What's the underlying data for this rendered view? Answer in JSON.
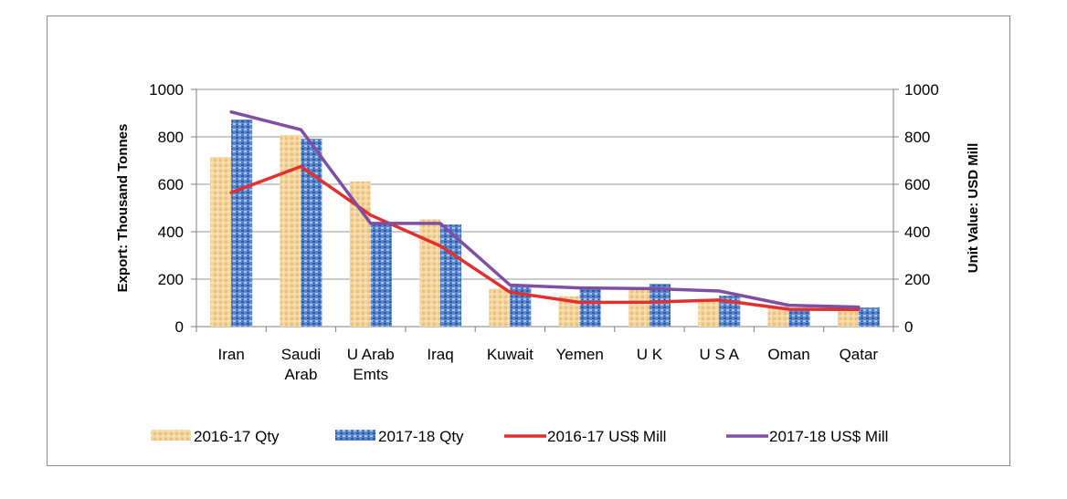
{
  "chart_data": {
    "type": "bar",
    "categories": [
      "Iran",
      "Saudi Arab",
      "U Arab Emts",
      "Iraq",
      "Kuwait",
      "Yemen",
      "U K",
      "U S A",
      "Oman",
      "Qatar"
    ],
    "category_lines": [
      [
        "Iran"
      ],
      [
        "Saudi",
        "Arab"
      ],
      [
        "U Arab",
        "Emts"
      ],
      [
        "Iraq"
      ],
      [
        "Kuwait"
      ],
      [
        "Yemen"
      ],
      [
        "U K"
      ],
      [
        "U S A"
      ],
      [
        "Oman"
      ],
      [
        "Qatar"
      ]
    ],
    "series": [
      {
        "name": "2016-17 Qty",
        "kind": "bar",
        "axis": "left",
        "color": "#f2d29a",
        "values": [
          715,
          808,
          612,
          452,
          160,
          128,
          158,
          110,
          85,
          78
        ]
      },
      {
        "name": "2017-18 Qty",
        "kind": "bar",
        "axis": "left",
        "color": "#4f7fc9",
        "values": [
          873,
          792,
          440,
          430,
          178,
          160,
          180,
          130,
          78,
          80
        ]
      },
      {
        "name": "2016-17 US$ Mill",
        "kind": "line",
        "axis": "right",
        "color": "#e03030",
        "values": [
          565,
          675,
          470,
          340,
          145,
          102,
          103,
          112,
          73,
          72
        ]
      },
      {
        "name": "2017-18 US$ Mill",
        "kind": "line",
        "axis": "right",
        "color": "#7f4fa6",
        "values": [
          905,
          830,
          435,
          435,
          175,
          163,
          160,
          150,
          90,
          82
        ]
      }
    ],
    "ylabel": "Export: Thousand Tonnes",
    "y2label": "Unit Value: USD Mill",
    "ylim": [
      0,
      1000
    ],
    "y2lim": [
      0,
      1000
    ],
    "yticks": [
      "0",
      "200",
      "400",
      "600",
      "800",
      "1000"
    ],
    "y2ticks": [
      "0",
      "200",
      "400",
      "600",
      "800",
      "1000"
    ],
    "grid": true,
    "legend_position": "bottom"
  }
}
